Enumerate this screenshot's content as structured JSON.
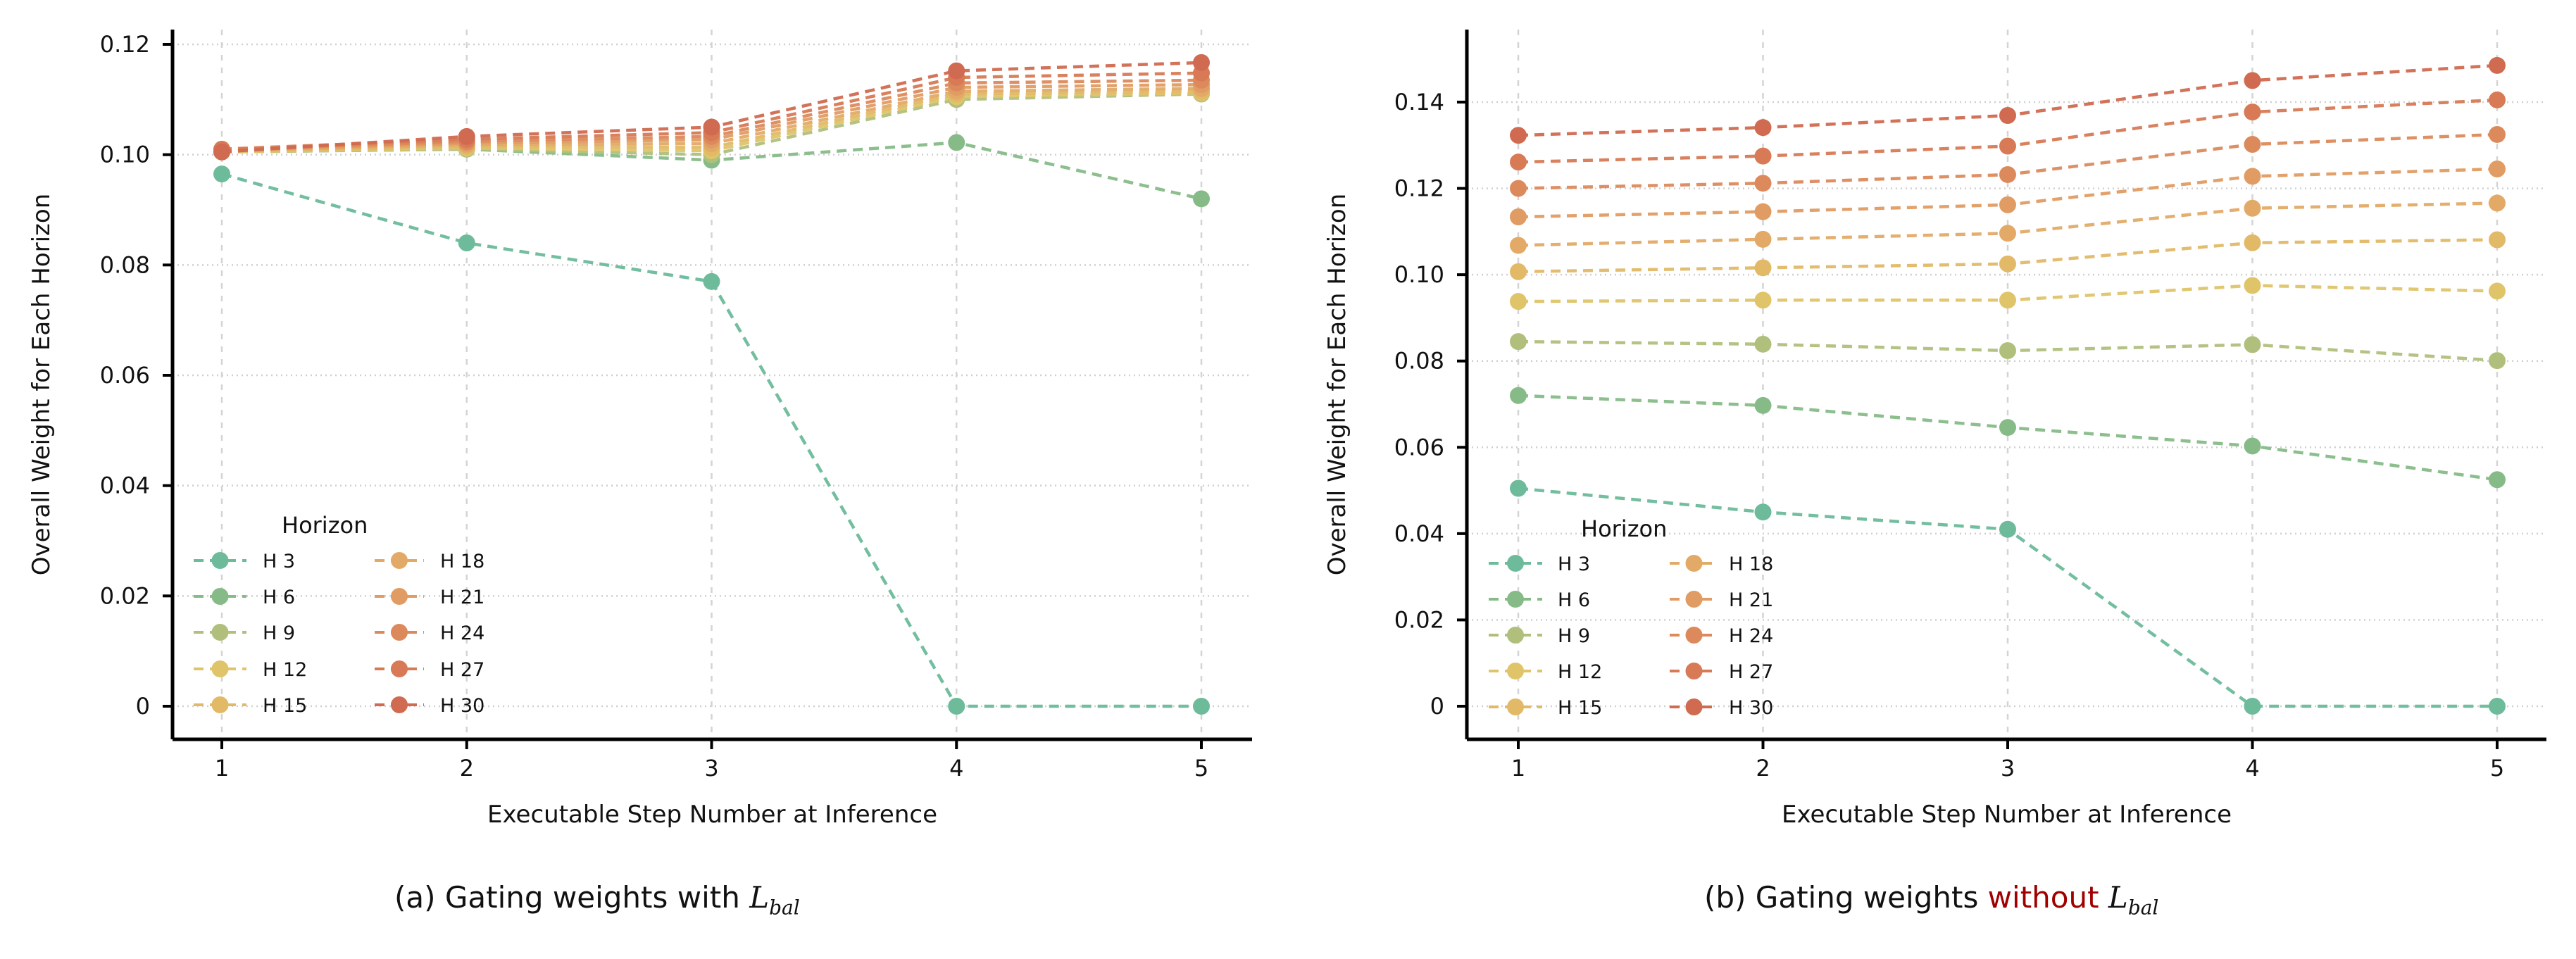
{
  "chart_data": [
    {
      "type": "line",
      "panel": "a",
      "caption": {
        "prefix": "(a) Gating weights with ",
        "math_main": "L",
        "math_sub": "bal"
      },
      "xlabel": "Executable Step Number at Inference",
      "ylabel": "Overall Weight for Each Horizon",
      "x": [
        1,
        2,
        3,
        4,
        5
      ],
      "ylim": [
        0,
        0.12
      ],
      "yticks": [
        0,
        0.02,
        0.04,
        0.06,
        0.08,
        0.1,
        0.12
      ],
      "ytick_labels": [
        "0",
        "0.02",
        "0.04",
        "0.06",
        "0.08",
        "0.10",
        "0.12"
      ],
      "xtick_labels": [
        "1",
        "2",
        "3",
        "4",
        "5"
      ],
      "grid": true,
      "line_style": "dashed with circle markers",
      "legend": {
        "title": "Horizon",
        "placement": "bottom-left",
        "columns": 2
      },
      "series": [
        {
          "name": "H 3",
          "color": "#6dbb9b",
          "values": [
            0.0965,
            0.084,
            0.077,
            0.0,
            0.0
          ]
        },
        {
          "name": "H 6",
          "color": "#86bb88",
          "values": [
            0.1005,
            0.101,
            0.099,
            0.1022,
            0.092
          ]
        },
        {
          "name": "H 9",
          "color": "#b0c07c",
          "values": [
            0.1005,
            0.101,
            0.1,
            0.11,
            0.111
          ]
        },
        {
          "name": "H 12",
          "color": "#dfc46a",
          "values": [
            0.1005,
            0.1012,
            0.1007,
            0.1105,
            0.1112
          ]
        },
        {
          "name": "H 15",
          "color": "#e2b967",
          "values": [
            0.1006,
            0.1015,
            0.1013,
            0.111,
            0.1115
          ]
        },
        {
          "name": "H 18",
          "color": "#e2aa66",
          "values": [
            0.1007,
            0.1018,
            0.102,
            0.1115,
            0.112
          ]
        },
        {
          "name": "H 21",
          "color": "#e09c63",
          "values": [
            0.1008,
            0.1021,
            0.1027,
            0.1122,
            0.1127
          ]
        },
        {
          "name": "H 24",
          "color": "#dc8a5c",
          "values": [
            0.1009,
            0.1024,
            0.1033,
            0.113,
            0.1135
          ]
        },
        {
          "name": "H 27",
          "color": "#d77a55",
          "values": [
            0.101,
            0.1028,
            0.104,
            0.114,
            0.1148
          ]
        },
        {
          "name": "H 30",
          "color": "#d06a50",
          "values": [
            0.1005,
            0.1033,
            0.105,
            0.1152,
            0.1167
          ]
        }
      ]
    },
    {
      "type": "line",
      "panel": "b",
      "caption": {
        "prefix": "(b) Gating weights ",
        "highlight": "without",
        "highlight_color": "#a00000",
        "math_main": "L",
        "math_sub": "bal"
      },
      "xlabel": "Executable Step Number at Inference",
      "ylabel": "Overall Weight for Each Horizon",
      "x": [
        1,
        2,
        3,
        4,
        5
      ],
      "ylim": [
        0,
        0.14
      ],
      "yticks": [
        0,
        0.02,
        0.04,
        0.06,
        0.08,
        0.1,
        0.12,
        0.14
      ],
      "ytick_labels": [
        "0",
        "0.02",
        "0.04",
        "0.06",
        "0.08",
        "0.10",
        "0.12",
        "0.14"
      ],
      "xtick_labels": [
        "1",
        "2",
        "3",
        "4",
        "5"
      ],
      "grid": true,
      "line_style": "dashed with circle markers",
      "legend": {
        "title": "Horizon",
        "placement": "bottom-left",
        "columns": 2
      },
      "series": [
        {
          "name": "H 3",
          "color": "#6dbb9b",
          "values": [
            0.0505,
            0.045,
            0.041,
            0.0,
            0.0
          ]
        },
        {
          "name": "H 6",
          "color": "#86bb88",
          "values": [
            0.072,
            0.0697,
            0.0646,
            0.0603,
            0.0525
          ]
        },
        {
          "name": "H 9",
          "color": "#b0c07c",
          "values": [
            0.0845,
            0.0839,
            0.0824,
            0.0838,
            0.0801
          ]
        },
        {
          "name": "H 12",
          "color": "#dfc46a",
          "values": [
            0.0938,
            0.0941,
            0.0941,
            0.0975,
            0.0962
          ]
        },
        {
          "name": "H 15",
          "color": "#e2b967",
          "values": [
            0.1007,
            0.1016,
            0.1025,
            0.1074,
            0.1081
          ]
        },
        {
          "name": "H 18",
          "color": "#e2aa66",
          "values": [
            0.1068,
            0.1082,
            0.1096,
            0.1154,
            0.1166
          ]
        },
        {
          "name": "H 21",
          "color": "#e09c63",
          "values": [
            0.1134,
            0.1146,
            0.1162,
            0.1228,
            0.1245
          ]
        },
        {
          "name": "H 24",
          "color": "#dc8a5c",
          "values": [
            0.12,
            0.1212,
            0.1232,
            0.1302,
            0.1325
          ]
        },
        {
          "name": "H 27",
          "color": "#d77a55",
          "values": [
            0.1261,
            0.1275,
            0.1298,
            0.1377,
            0.1405
          ]
        },
        {
          "name": "H 30",
          "color": "#d06a50",
          "values": [
            0.1323,
            0.1341,
            0.1369,
            0.145,
            0.1485
          ]
        }
      ]
    }
  ]
}
